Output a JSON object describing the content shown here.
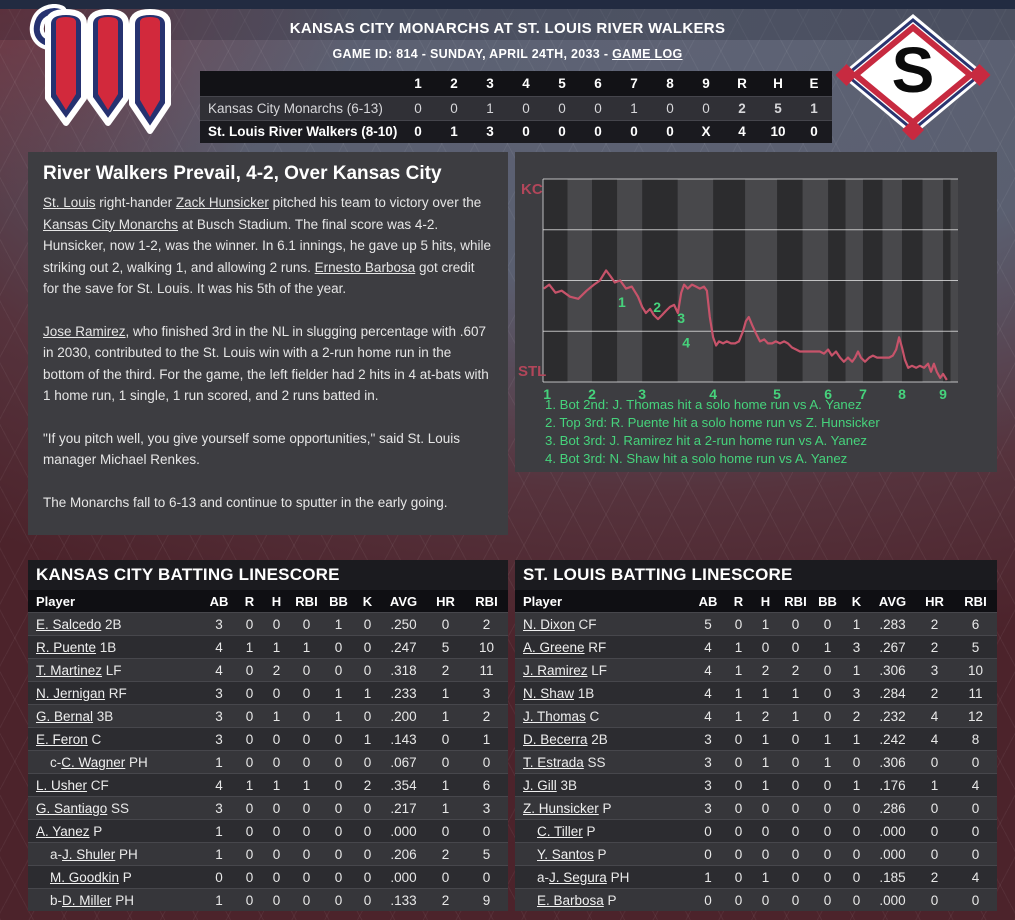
{
  "colors": {
    "green": "#46d37c",
    "chart_line": "#c7536a",
    "team_label": "#b2465a",
    "panel": "#3d3d41",
    "maroon_bg": "#4c232b",
    "slate_bg": "#5c6172",
    "navy": "#263270",
    "red": "#d2293c"
  },
  "icons": {
    "kc_logo": "monarchs-pennant-m-logo",
    "stl_logo": "river-walkers-diamond-s-logo"
  },
  "header": {
    "title": "KANSAS CITY MONARCHS AT ST. LOUIS RIVER WALKERS",
    "game_info": "GAME ID: 814 - SUNDAY, APRIL 24TH, 2033 - ",
    "game_log_link": "GAME LOG"
  },
  "logos": {
    "stl_letter": "S"
  },
  "linescore": {
    "columns": [
      "1",
      "2",
      "3",
      "4",
      "5",
      "6",
      "7",
      "8",
      "9",
      "R",
      "H",
      "E"
    ],
    "rows": [
      {
        "team": "Kansas City Monarchs (6-13)",
        "innings": [
          "0",
          "0",
          "1",
          "0",
          "0",
          "0",
          "1",
          "0",
          "0"
        ],
        "R": "2",
        "H": "5",
        "E": "1",
        "winner": false
      },
      {
        "team": "St. Louis River Walkers (8-10)",
        "innings": [
          "0",
          "1",
          "3",
          "0",
          "0",
          "0",
          "0",
          "0",
          "X"
        ],
        "R": "4",
        "H": "10",
        "E": "0",
        "winner": true
      }
    ]
  },
  "article": {
    "headline": "River Walkers Prevail, 4-2, Over Kansas City",
    "paragraphs": [
      [
        {
          "t": "St. Louis",
          "link": true
        },
        {
          "t": " right-hander ",
          "link": false
        },
        {
          "t": "Zack Hunsicker",
          "link": true
        },
        {
          "t": " pitched his team to victory over the ",
          "link": false
        },
        {
          "t": "Kansas City Monarchs",
          "link": true
        },
        {
          "t": " at Busch Stadium. The final score was 4-2. Hunsicker, now 1-2, was the winner. In 6.1 innings, he gave up 5 hits, while striking out 2, walking 1, and allowing 2 runs. ",
          "link": false
        },
        {
          "t": "Ernesto Barbosa",
          "link": true
        },
        {
          "t": " got credit for the save for St. Louis. It was his 5th of the year.",
          "link": false
        }
      ],
      [
        {
          "t": "Jose Ramirez",
          "link": true
        },
        {
          "t": ", who finished 3rd in the NL in slugging percentage with .607 in 2030, contributed to the St. Louis win with a 2-run home run in the bottom of the third. For the game, the left fielder had 2 hits in 4 at-bats with 1 home run, 1 single, 1 run scored, and 2 runs batted in.",
          "link": false
        }
      ],
      [
        {
          "t": "\"If you pitch well, you give yourself some opportunities,\" said St. Louis manager Michael Renkes.",
          "link": false
        }
      ],
      [
        {
          "t": "The Monarchs fall to 6-13 and continue to sputter in the early going.",
          "link": false
        }
      ]
    ]
  },
  "chart_data": {
    "type": "line",
    "title": "Win probability by play",
    "top_label": "KC",
    "bottom_label": "STL",
    "ylim": [
      0,
      100
    ],
    "grid": true,
    "gridlines": 5,
    "legend_position": "below",
    "x_ticks": [
      {
        "label": "1",
        "x": 1.0
      },
      {
        "label": "2",
        "x": 11.8
      },
      {
        "label": "3",
        "x": 23.9
      },
      {
        "label": "4",
        "x": 41.0
      },
      {
        "label": "5",
        "x": 56.4
      },
      {
        "label": "6",
        "x": 68.7
      },
      {
        "label": "7",
        "x": 77.1
      },
      {
        "label": "8",
        "x": 86.5
      },
      {
        "label": "9",
        "x": 96.4
      }
    ],
    "series": [
      {
        "name": "KC win probability (% of plot width, % probability)",
        "points": [
          [
            0.2,
            46
          ],
          [
            1.5,
            48
          ],
          [
            3,
            44
          ],
          [
            4.5,
            45
          ],
          [
            6.5,
            42
          ],
          [
            8.5,
            41
          ],
          [
            10.5,
            45
          ],
          [
            12.3,
            48
          ],
          [
            13.7,
            50
          ],
          [
            15.2,
            55
          ],
          [
            16.3,
            52
          ],
          [
            17.3,
            49
          ],
          [
            18.6,
            50
          ],
          [
            20,
            46
          ],
          [
            21.4,
            47
          ],
          [
            22.9,
            42
          ],
          [
            23.9,
            37
          ],
          [
            24.8,
            34
          ],
          [
            25.8,
            36
          ],
          [
            26.7,
            33
          ],
          [
            27.7,
            31
          ],
          [
            28.7,
            33
          ],
          [
            29.6,
            35
          ],
          [
            30.6,
            37
          ],
          [
            31.6,
            38
          ],
          [
            32.5,
            34
          ],
          [
            33.3,
            44
          ],
          [
            34,
            48
          ],
          [
            34.9,
            46
          ],
          [
            35.9,
            48
          ],
          [
            36.9,
            47
          ],
          [
            37.8,
            46
          ],
          [
            38.8,
            47
          ],
          [
            39.5,
            45
          ],
          [
            40.2,
            32
          ],
          [
            41,
            22
          ],
          [
            41.7,
            18
          ],
          [
            42.4,
            20
          ],
          [
            43.4,
            19
          ],
          [
            44.3,
            20
          ],
          [
            45.3,
            19
          ],
          [
            46.3,
            19
          ],
          [
            47.2,
            20
          ],
          [
            48.2,
            25
          ],
          [
            48.9,
            30
          ],
          [
            49.6,
            32
          ],
          [
            50.4,
            28
          ],
          [
            51.3,
            24
          ],
          [
            52.3,
            20
          ],
          [
            53.3,
            21
          ],
          [
            54.2,
            19
          ],
          [
            55.2,
            19
          ],
          [
            56.1,
            20
          ],
          [
            57.1,
            19
          ],
          [
            58.1,
            20
          ],
          [
            59,
            19
          ],
          [
            60,
            17
          ],
          [
            61,
            16
          ],
          [
            61.9,
            15
          ],
          [
            62.9,
            15
          ],
          [
            63.9,
            15
          ],
          [
            64.8,
            15
          ],
          [
            65.8,
            15
          ],
          [
            66.7,
            15
          ],
          [
            67.7,
            14
          ],
          [
            68.7,
            16
          ],
          [
            69.6,
            13
          ],
          [
            70.6,
            15
          ],
          [
            71.6,
            12
          ],
          [
            72.5,
            10
          ],
          [
            73.5,
            12
          ],
          [
            74.5,
            10
          ],
          [
            75.2,
            12
          ],
          [
            75.9,
            15
          ],
          [
            76.6,
            12
          ],
          [
            77.6,
            10
          ],
          [
            78.6,
            12
          ],
          [
            79.5,
            13
          ],
          [
            80.5,
            12
          ],
          [
            81.4,
            12
          ],
          [
            82.4,
            12
          ],
          [
            83.4,
            12
          ],
          [
            84.3,
            13
          ],
          [
            85.1,
            16
          ],
          [
            85.8,
            22
          ],
          [
            86.5,
            17
          ],
          [
            87.2,
            11
          ],
          [
            88,
            7
          ],
          [
            88.9,
            8
          ],
          [
            89.9,
            7
          ],
          [
            90.8,
            8
          ],
          [
            91.8,
            7
          ],
          [
            92.8,
            9
          ],
          [
            93.5,
            5
          ],
          [
            94.2,
            9
          ],
          [
            94.9,
            5
          ],
          [
            95.7,
            2
          ],
          [
            96.4,
            4
          ],
          [
            97.3,
            1
          ]
        ]
      }
    ],
    "events": [
      {
        "marker": "1",
        "x": 19.0,
        "y": 63.0,
        "line": "1. Bot 2nd: J. Thomas hit a solo home run vs A. Yanez"
      },
      {
        "marker": "2",
        "x": 27.5,
        "y": 65.5,
        "line": "2. Top 3rd: R. Puente hit a solo home run vs Z. Hunsicker"
      },
      {
        "marker": "3",
        "x": 33.3,
        "y": 71.0,
        "line": "3. Bot 3rd: J. Ramirez hit a 2-run home run vs A. Yanez"
      },
      {
        "marker": "4",
        "x": 34.5,
        "y": 83.0,
        "line": "4. Bot 3rd: N. Shaw hit a solo home run vs A. Yanez"
      }
    ]
  },
  "kc_batting": {
    "title": "KANSAS CITY BATTING LINESCORE",
    "columns": [
      "Player",
      "AB",
      "R",
      "H",
      "RBI",
      "BB",
      "K",
      "AVG",
      "HR",
      "RBI"
    ],
    "rows": [
      {
        "prefix": "",
        "name": "E. Salcedo",
        "pos": "2B",
        "indent": false,
        "stats": [
          "3",
          "0",
          "0",
          "0",
          "1",
          "0",
          ".250",
          "0",
          "2"
        ]
      },
      {
        "prefix": "",
        "name": "R. Puente",
        "pos": "1B",
        "indent": false,
        "stats": [
          "4",
          "1",
          "1",
          "1",
          "0",
          "0",
          ".247",
          "5",
          "10"
        ]
      },
      {
        "prefix": "",
        "name": "T. Martinez",
        "pos": "LF",
        "indent": false,
        "stats": [
          "4",
          "0",
          "2",
          "0",
          "0",
          "0",
          ".318",
          "2",
          "11"
        ]
      },
      {
        "prefix": "",
        "name": "N. Jernigan",
        "pos": "RF",
        "indent": false,
        "stats": [
          "3",
          "0",
          "0",
          "0",
          "1",
          "1",
          ".233",
          "1",
          "3"
        ]
      },
      {
        "prefix": "",
        "name": "G. Bernal",
        "pos": "3B",
        "indent": false,
        "stats": [
          "3",
          "0",
          "1",
          "0",
          "1",
          "0",
          ".200",
          "1",
          "2"
        ]
      },
      {
        "prefix": "",
        "name": "E. Feron",
        "pos": "C",
        "indent": false,
        "stats": [
          "3",
          "0",
          "0",
          "0",
          "0",
          "1",
          ".143",
          "0",
          "1"
        ]
      },
      {
        "prefix": "c-",
        "name": "C. Wagner",
        "pos": "PH",
        "indent": true,
        "stats": [
          "1",
          "0",
          "0",
          "0",
          "0",
          "0",
          ".067",
          "0",
          "0"
        ]
      },
      {
        "prefix": "",
        "name": "L. Usher",
        "pos": "CF",
        "indent": false,
        "stats": [
          "4",
          "1",
          "1",
          "1",
          "0",
          "2",
          ".354",
          "1",
          "6"
        ]
      },
      {
        "prefix": "",
        "name": "G. Santiago",
        "pos": "SS",
        "indent": false,
        "stats": [
          "3",
          "0",
          "0",
          "0",
          "0",
          "0",
          ".217",
          "1",
          "3"
        ]
      },
      {
        "prefix": "",
        "name": "A. Yanez",
        "pos": "P",
        "indent": false,
        "stats": [
          "1",
          "0",
          "0",
          "0",
          "0",
          "0",
          ".000",
          "0",
          "0"
        ]
      },
      {
        "prefix": "a-",
        "name": "J. Shuler",
        "pos": "PH",
        "indent": true,
        "stats": [
          "1",
          "0",
          "0",
          "0",
          "0",
          "0",
          ".206",
          "2",
          "5"
        ]
      },
      {
        "prefix": "",
        "name": "M. Goodkin",
        "pos": "P",
        "indent": true,
        "stats": [
          "0",
          "0",
          "0",
          "0",
          "0",
          "0",
          ".000",
          "0",
          "0"
        ]
      },
      {
        "prefix": "b-",
        "name": "D. Miller",
        "pos": "PH",
        "indent": true,
        "stats": [
          "1",
          "0",
          "0",
          "0",
          "0",
          "0",
          ".133",
          "2",
          "9"
        ]
      }
    ]
  },
  "stl_batting": {
    "title": "ST. LOUIS BATTING LINESCORE",
    "columns": [
      "Player",
      "AB",
      "R",
      "H",
      "RBI",
      "BB",
      "K",
      "AVG",
      "HR",
      "RBI"
    ],
    "rows": [
      {
        "prefix": "",
        "name": "N. Dixon",
        "pos": "CF",
        "indent": false,
        "stats": [
          "5",
          "0",
          "1",
          "0",
          "0",
          "1",
          ".283",
          "2",
          "6"
        ]
      },
      {
        "prefix": "",
        "name": "A. Greene",
        "pos": "RF",
        "indent": false,
        "stats": [
          "4",
          "1",
          "0",
          "0",
          "1",
          "3",
          ".267",
          "2",
          "5"
        ]
      },
      {
        "prefix": "",
        "name": "J. Ramirez",
        "pos": "LF",
        "indent": false,
        "stats": [
          "4",
          "1",
          "2",
          "2",
          "0",
          "1",
          ".306",
          "3",
          "10"
        ]
      },
      {
        "prefix": "",
        "name": "N. Shaw",
        "pos": "1B",
        "indent": false,
        "stats": [
          "4",
          "1",
          "1",
          "1",
          "0",
          "3",
          ".284",
          "2",
          "11"
        ]
      },
      {
        "prefix": "",
        "name": "J. Thomas",
        "pos": "C",
        "indent": false,
        "stats": [
          "4",
          "1",
          "2",
          "1",
          "0",
          "2",
          ".232",
          "4",
          "12"
        ]
      },
      {
        "prefix": "",
        "name": "D. Becerra",
        "pos": "2B",
        "indent": false,
        "stats": [
          "3",
          "0",
          "1",
          "0",
          "1",
          "1",
          ".242",
          "4",
          "8"
        ]
      },
      {
        "prefix": "",
        "name": "T. Estrada",
        "pos": "SS",
        "indent": false,
        "stats": [
          "3",
          "0",
          "1",
          "0",
          "1",
          "0",
          ".306",
          "0",
          "0"
        ]
      },
      {
        "prefix": "",
        "name": "J. Gill",
        "pos": "3B",
        "indent": false,
        "stats": [
          "3",
          "0",
          "1",
          "0",
          "0",
          "1",
          ".176",
          "1",
          "4"
        ]
      },
      {
        "prefix": "",
        "name": "Z. Hunsicker",
        "pos": "P",
        "indent": false,
        "stats": [
          "3",
          "0",
          "0",
          "0",
          "0",
          "0",
          ".286",
          "0",
          "0"
        ]
      },
      {
        "prefix": "",
        "name": "C. Tiller",
        "pos": "P",
        "indent": true,
        "stats": [
          "0",
          "0",
          "0",
          "0",
          "0",
          "0",
          ".000",
          "0",
          "0"
        ]
      },
      {
        "prefix": "",
        "name": "Y. Santos",
        "pos": "P",
        "indent": true,
        "stats": [
          "0",
          "0",
          "0",
          "0",
          "0",
          "0",
          ".000",
          "0",
          "0"
        ]
      },
      {
        "prefix": "a-",
        "name": "J. Segura",
        "pos": "PH",
        "indent": true,
        "stats": [
          "1",
          "0",
          "1",
          "0",
          "0",
          "0",
          ".185",
          "2",
          "4"
        ]
      },
      {
        "prefix": "",
        "name": "E. Barbosa",
        "pos": "P",
        "indent": true,
        "stats": [
          "0",
          "0",
          "0",
          "0",
          "0",
          "0",
          ".000",
          "0",
          "0"
        ]
      }
    ]
  }
}
